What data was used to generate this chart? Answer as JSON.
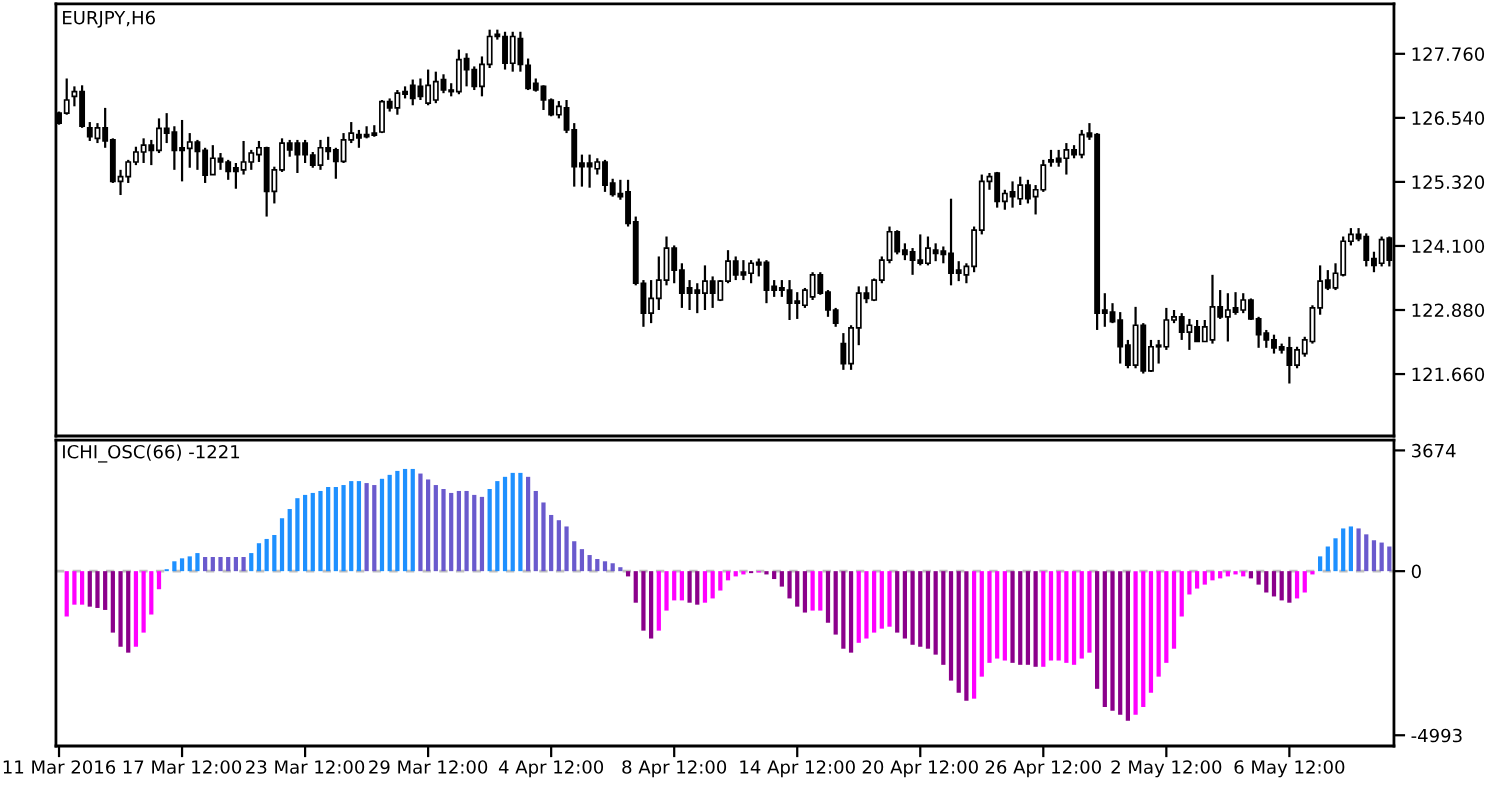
{
  "chart_data": [
    {
      "type": "candlestick",
      "title": "EURJPY,H6",
      "tick_labels": "y",
      "ohlc": [
        [
          126.63,
          126.66,
          126.41,
          126.44
        ],
        [
          126.63,
          127.29,
          126.6,
          126.88
        ],
        [
          126.95,
          127.14,
          126.76,
          127.04
        ],
        [
          127.04,
          127.16,
          126.35,
          126.38
        ],
        [
          126.35,
          126.46,
          126.1,
          126.18
        ],
        [
          126.15,
          126.44,
          126.06,
          126.35
        ],
        [
          126.35,
          126.73,
          125.97,
          126.1
        ],
        [
          126.12,
          126.15,
          125.3,
          125.33
        ],
        [
          125.33,
          125.55,
          125.07,
          125.42
        ],
        [
          125.42,
          125.74,
          125.3,
          125.7
        ],
        [
          125.7,
          125.99,
          125.64,
          125.89
        ],
        [
          125.89,
          126.15,
          125.68,
          126.02
        ],
        [
          126.02,
          126.12,
          125.64,
          125.92
        ],
        [
          125.92,
          126.53,
          125.87,
          126.34
        ],
        [
          126.34,
          126.63,
          126.06,
          126.25
        ],
        [
          126.27,
          126.38,
          125.55,
          125.92
        ],
        [
          125.97,
          126.5,
          125.33,
          125.92
        ],
        [
          125.96,
          126.25,
          125.59,
          126.08
        ],
        [
          126.08,
          126.12,
          125.55,
          125.9
        ],
        [
          125.92,
          125.97,
          125.3,
          125.45
        ],
        [
          125.46,
          126.02,
          125.46,
          125.77
        ],
        [
          125.77,
          125.87,
          125.55,
          125.7
        ],
        [
          125.7,
          125.74,
          125.36,
          125.52
        ],
        [
          125.59,
          125.68,
          125.19,
          125.52
        ],
        [
          125.55,
          126.1,
          125.46,
          125.7
        ],
        [
          125.7,
          125.93,
          125.55,
          125.87
        ],
        [
          125.84,
          126.1,
          125.7,
          125.97
        ],
        [
          125.97,
          125.99,
          124.66,
          125.14
        ],
        [
          125.14,
          125.61,
          124.91,
          125.55
        ],
        [
          125.55,
          126.15,
          125.51,
          126.06
        ],
        [
          126.06,
          126.12,
          125.8,
          125.93
        ],
        [
          126.06,
          126.12,
          125.49,
          125.84
        ],
        [
          126.06,
          126.12,
          125.68,
          125.84
        ],
        [
          125.83,
          125.89,
          125.59,
          125.64
        ],
        [
          125.64,
          126.12,
          125.55,
          125.97
        ],
        [
          125.97,
          126.18,
          125.74,
          125.9
        ],
        [
          125.93,
          125.97,
          125.38,
          125.71
        ],
        [
          125.71,
          126.25,
          125.68,
          126.12
        ],
        [
          126.12,
          126.46,
          126.06,
          126.25
        ],
        [
          126.22,
          126.31,
          125.97,
          126.16
        ],
        [
          126.22,
          126.38,
          126.15,
          126.18
        ],
        [
          126.25,
          126.4,
          126.18,
          126.21
        ],
        [
          126.27,
          126.88,
          126.25,
          126.85
        ],
        [
          126.85,
          126.91,
          126.66,
          126.73
        ],
        [
          126.73,
          127.07,
          126.6,
          127.01
        ],
        [
          127.04,
          127.14,
          126.91,
          126.99
        ],
        [
          127.16,
          127.27,
          126.78,
          126.91
        ],
        [
          127.14,
          127.29,
          126.88,
          126.95
        ],
        [
          126.82,
          127.46,
          126.78,
          127.16
        ],
        [
          126.88,
          127.42,
          126.82,
          127.23
        ],
        [
          127.27,
          127.37,
          127.01,
          127.07
        ],
        [
          127.07,
          127.2,
          126.95,
          127.04
        ],
        [
          127.04,
          127.84,
          126.99,
          127.65
        ],
        [
          127.67,
          127.77,
          127.14,
          127.46
        ],
        [
          127.46,
          127.52,
          127.07,
          127.14
        ],
        [
          127.14,
          127.71,
          126.95,
          127.56
        ],
        [
          127.56,
          128.22,
          127.49,
          128.09
        ],
        [
          128.13,
          128.22,
          128.03,
          128.09
        ],
        [
          128.09,
          128.18,
          127.46,
          127.58
        ],
        [
          127.58,
          128.18,
          127.42,
          128.09
        ],
        [
          128.05,
          128.18,
          127.42,
          127.56
        ],
        [
          127.54,
          127.67,
          127.07,
          127.1
        ],
        [
          127.2,
          127.29,
          127.04,
          127.07
        ],
        [
          127.14,
          127.16,
          126.69,
          126.88
        ],
        [
          126.88,
          126.91,
          126.57,
          126.6
        ],
        [
          126.6,
          126.86,
          126.53,
          126.76
        ],
        [
          126.73,
          126.88,
          126.25,
          126.31
        ],
        [
          126.31,
          126.44,
          125.23,
          125.61
        ],
        [
          125.68,
          125.84,
          125.23,
          125.61
        ],
        [
          125.68,
          125.84,
          125.21,
          125.61
        ],
        [
          125.57,
          125.77,
          125.46,
          125.7
        ],
        [
          125.7,
          125.74,
          125.13,
          125.26
        ],
        [
          125.3,
          125.38,
          125.04,
          125.08
        ],
        [
          125.1,
          125.36,
          124.98,
          125.04
        ],
        [
          125.13,
          125.36,
          124.47,
          124.53
        ],
        [
          124.56,
          124.66,
          123.35,
          123.39
        ],
        [
          123.39,
          123.45,
          122.56,
          122.82
        ],
        [
          122.82,
          123.45,
          122.63,
          123.1
        ],
        [
          123.1,
          123.9,
          122.88,
          123.45
        ],
        [
          123.45,
          124.28,
          123.35,
          124.06
        ],
        [
          124.06,
          124.11,
          123.39,
          123.64
        ],
        [
          123.64,
          123.77,
          122.92,
          123.2
        ],
        [
          123.3,
          123.45,
          122.88,
          123.2
        ],
        [
          123.26,
          123.39,
          122.82,
          123.2
        ],
        [
          123.2,
          123.73,
          122.88,
          123.43
        ],
        [
          123.43,
          123.52,
          122.92,
          123.2
        ],
        [
          123.07,
          123.45,
          123.05,
          123.43
        ],
        [
          123.43,
          124.02,
          123.39,
          123.81
        ],
        [
          123.81,
          123.9,
          123.45,
          123.55
        ],
        [
          123.6,
          123.83,
          123.45,
          123.55
        ],
        [
          123.58,
          123.83,
          123.39,
          123.77
        ],
        [
          123.79,
          123.86,
          123.52,
          123.74
        ],
        [
          123.79,
          123.83,
          123.01,
          123.26
        ],
        [
          123.33,
          123.45,
          123.13,
          123.26
        ],
        [
          123.3,
          123.45,
          123.13,
          123.26
        ],
        [
          123.26,
          123.45,
          122.69,
          123.01
        ],
        [
          123.05,
          123.22,
          122.71,
          123.01
        ],
        [
          122.97,
          123.3,
          122.92,
          123.26
        ],
        [
          123.13,
          123.6,
          123.07,
          123.55
        ],
        [
          123.55,
          123.6,
          123.17,
          123.2
        ],
        [
          123.22,
          123.26,
          122.75,
          122.88
        ],
        [
          122.88,
          122.92,
          122.56,
          122.63
        ],
        [
          122.24,
          122.44,
          121.74,
          121.86
        ],
        [
          121.86,
          122.59,
          121.74,
          122.54
        ],
        [
          122.54,
          123.33,
          122.21,
          123.2
        ],
        [
          123.2,
          123.33,
          123.01,
          123.1
        ],
        [
          123.07,
          123.48,
          123.05,
          123.45
        ],
        [
          123.45,
          123.9,
          123.39,
          123.83
        ],
        [
          123.83,
          124.47,
          123.77,
          124.37
        ],
        [
          124.37,
          124.4,
          123.94,
          123.99
        ],
        [
          124.02,
          124.15,
          123.83,
          123.94
        ],
        [
          123.99,
          124.06,
          123.55,
          123.83
        ],
        [
          123.83,
          124.32,
          123.73,
          123.77
        ],
        [
          123.77,
          124.28,
          123.73,
          124.06
        ],
        [
          124.02,
          124.15,
          123.81,
          123.96
        ],
        [
          124.0,
          124.09,
          123.77,
          123.94
        ],
        [
          123.96,
          125.0,
          123.35,
          123.58
        ],
        [
          123.64,
          123.81,
          123.43,
          123.58
        ],
        [
          123.55,
          123.77,
          123.39,
          123.71
        ],
        [
          123.71,
          124.47,
          123.6,
          124.4
        ],
        [
          124.4,
          125.46,
          124.32,
          125.33
        ],
        [
          125.33,
          125.49,
          125.17,
          125.42
        ],
        [
          125.49,
          125.51,
          124.83,
          124.95
        ],
        [
          124.95,
          125.17,
          124.79,
          125.1
        ],
        [
          125.13,
          125.33,
          124.83,
          125.04
        ],
        [
          125.0,
          125.42,
          124.88,
          125.26
        ],
        [
          125.26,
          125.36,
          124.91,
          125.0
        ],
        [
          125.04,
          125.26,
          124.7,
          125.17
        ],
        [
          125.17,
          125.74,
          125.13,
          125.64
        ],
        [
          125.74,
          125.93,
          125.61,
          125.7
        ],
        [
          125.77,
          125.93,
          125.61,
          125.7
        ],
        [
          125.77,
          126.06,
          125.46,
          125.93
        ],
        [
          125.93,
          126.02,
          125.77,
          125.84
        ],
        [
          125.84,
          126.31,
          125.77,
          126.22
        ],
        [
          126.25,
          126.44,
          126.12,
          126.18
        ],
        [
          126.22,
          126.25,
          122.5,
          122.82
        ],
        [
          122.88,
          123.2,
          122.56,
          122.82
        ],
        [
          122.84,
          123.01,
          122.63,
          122.66
        ],
        [
          122.69,
          122.84,
          121.86,
          122.18
        ],
        [
          122.21,
          122.31,
          121.77,
          121.83
        ],
        [
          121.83,
          122.94,
          121.77,
          122.59
        ],
        [
          122.59,
          122.63,
          121.67,
          121.72
        ],
        [
          121.72,
          122.31,
          121.7,
          122.18
        ],
        [
          122.18,
          122.31,
          121.86,
          122.21
        ],
        [
          122.18,
          122.92,
          122.12,
          122.69
        ],
        [
          122.69,
          122.88,
          122.63,
          122.75
        ],
        [
          122.75,
          122.82,
          122.31,
          122.46
        ],
        [
          122.46,
          122.71,
          122.12,
          122.59
        ],
        [
          122.56,
          122.69,
          122.28,
          122.28
        ],
        [
          122.28,
          122.69,
          122.28,
          122.56
        ],
        [
          122.31,
          123.55,
          122.24,
          122.94
        ],
        [
          122.94,
          123.26,
          122.71,
          122.75
        ],
        [
          122.75,
          123.2,
          122.28,
          122.88
        ],
        [
          122.92,
          123.22,
          122.79,
          122.84
        ],
        [
          122.88,
          123.2,
          122.82,
          123.07
        ],
        [
          123.07,
          123.1,
          122.69,
          122.71
        ],
        [
          122.71,
          122.75,
          122.16,
          122.41
        ],
        [
          122.44,
          122.5,
          122.16,
          122.31
        ],
        [
          122.31,
          122.41,
          122.05,
          122.16
        ],
        [
          122.18,
          122.24,
          122.05,
          122.12
        ],
        [
          122.16,
          122.37,
          121.48,
          121.83
        ],
        [
          121.83,
          122.18,
          121.77,
          122.12
        ],
        [
          122.05,
          122.37,
          121.99,
          122.31
        ],
        [
          122.28,
          122.97,
          122.24,
          122.92
        ],
        [
          122.92,
          123.73,
          122.79,
          123.43
        ],
        [
          123.45,
          123.64,
          123.26,
          123.3
        ],
        [
          123.3,
          123.77,
          123.26,
          123.58
        ],
        [
          123.55,
          124.28,
          123.52,
          124.19
        ],
        [
          124.19,
          124.44,
          124.11,
          124.32
        ],
        [
          124.32,
          124.44,
          124.19,
          124.24
        ],
        [
          124.28,
          124.34,
          123.71,
          123.83
        ],
        [
          123.86,
          123.99,
          123.6,
          123.73
        ],
        [
          123.77,
          124.28,
          123.71,
          124.22
        ],
        [
          124.25,
          124.28,
          123.71,
          123.83
        ]
      ],
      "ylim": [
        120.48,
        128.71
      ],
      "yticks": [
        {
          "value": 127.76,
          "label": "127.760"
        },
        {
          "value": 126.54,
          "label": "126.540"
        },
        {
          "value": 125.32,
          "label": "125.320"
        },
        {
          "value": 124.1,
          "label": "124.100"
        },
        {
          "value": 122.88,
          "label": "122.880"
        },
        {
          "value": 121.66,
          "label": "121.660"
        }
      ]
    },
    {
      "type": "bar",
      "title": "ICHI_OSC(66) -1221",
      "categories": [
        "11 Mar 2016",
        null,
        null,
        null,
        null,
        null,
        null,
        null,
        null,
        null,
        null,
        null,
        null,
        null,
        null,
        null,
        "17 Mar 12:00",
        null,
        null,
        null,
        null,
        null,
        null,
        null,
        null,
        null,
        null,
        null,
        null,
        null,
        null,
        null,
        "23 Mar 12:00",
        null,
        null,
        null,
        null,
        null,
        null,
        null,
        null,
        null,
        null,
        null,
        null,
        null,
        null,
        null,
        "29 Mar 12:00",
        null,
        null,
        null,
        null,
        null,
        null,
        null,
        null,
        null,
        null,
        null,
        null,
        null,
        null,
        null,
        "4 Apr 12:00",
        null,
        null,
        null,
        null,
        null,
        null,
        null,
        null,
        null,
        null,
        null,
        null,
        null,
        null,
        null,
        "8 Apr 12:00",
        null,
        null,
        null,
        null,
        null,
        null,
        null,
        null,
        null,
        null,
        null,
        null,
        null,
        null,
        null,
        "14 Apr 12:00",
        null,
        null,
        null,
        null,
        null,
        null,
        null,
        null,
        null,
        null,
        null,
        null,
        null,
        null,
        null,
        "20 Apr 12:00",
        null,
        null,
        null,
        null,
        null,
        null,
        null,
        null,
        null,
        null,
        null,
        null,
        null,
        null,
        null,
        "26 Apr 12:00",
        null,
        null,
        null,
        null,
        null,
        null,
        null,
        null,
        null,
        null,
        null,
        null,
        null,
        null,
        null,
        "2 May 12:00",
        null,
        null,
        null,
        null,
        null,
        null,
        null,
        null,
        null,
        null,
        null,
        null,
        null,
        null,
        null,
        "6 May 12:00",
        null,
        null,
        null,
        null,
        null,
        null,
        null,
        null,
        null,
        null,
        null,
        null,
        null
      ],
      "values": [
        null,
        -1380,
        -1020,
        -1020,
        -1080,
        -1120,
        -1180,
        -1870,
        -2300,
        -2480,
        -2300,
        -1870,
        -1320,
        -550,
        60,
        300,
        390,
        450,
        550,
        430,
        430,
        430,
        430,
        430,
        430,
        550,
        850,
        980,
        1100,
        1610,
        1890,
        2220,
        2320,
        2380,
        2440,
        2560,
        2560,
        2620,
        2740,
        2740,
        2680,
        2620,
        2810,
        2930,
        3050,
        3110,
        3110,
        2970,
        2790,
        2620,
        2500,
        2380,
        2440,
        2440,
        2320,
        2260,
        2500,
        2740,
        2870,
        2990,
        2990,
        2870,
        2440,
        2090,
        1710,
        1550,
        1360,
        910,
        670,
        490,
        370,
        300,
        240,
        120,
        -160,
        -960,
        -1810,
        -2050,
        -1810,
        -1200,
        -890,
        -890,
        -960,
        -1020,
        -960,
        -830,
        -590,
        -280,
        -160,
        -100,
        -60,
        -40,
        -100,
        -240,
        -470,
        -830,
        -1080,
        -1260,
        -1200,
        -1200,
        -1570,
        -1930,
        -2360,
        -2480,
        -2180,
        -2050,
        -1870,
        -1750,
        -1690,
        -1870,
        -2050,
        -2240,
        -2300,
        -2360,
        -2540,
        -2850,
        -3330,
        -3700,
        -3940,
        -3880,
        -3210,
        -2790,
        -2660,
        -2720,
        -2790,
        -2850,
        -2850,
        -2910,
        -2910,
        -2720,
        -2720,
        -2790,
        -2850,
        -2660,
        -2480,
        -3580,
        -4130,
        -4250,
        -4370,
        -4550,
        -4370,
        -4130,
        -3700,
        -3210,
        -2790,
        -2360,
        -1380,
        -710,
        -530,
        -410,
        -280,
        -220,
        -160,
        -100,
        -160,
        -220,
        -410,
        -650,
        -770,
        -890,
        -960,
        -830,
        -650,
        -100,
        450,
        750,
        1000,
        1300,
        1360,
        1300,
        1120,
        940,
        870,
        750
      ],
      "colors": [
        "#ff00ff",
        "#ff00ff",
        "#ff00ff",
        "#ff00ff",
        "#8b008b",
        "#8b008b",
        "#8b008b",
        "#8b008b",
        "#8b008b",
        "#8b008b",
        "#ff00ff",
        "#ff00ff",
        "#ff00ff",
        "#ff00ff",
        "#1e90ff",
        "#1e90ff",
        "#1e90ff",
        "#1e90ff",
        "#1e90ff",
        "#6a5acd",
        "#6a5acd",
        "#6a5acd",
        "#6a5acd",
        "#6a5acd",
        "#6a5acd",
        "#1e90ff",
        "#1e90ff",
        "#1e90ff",
        "#1e90ff",
        "#1e90ff",
        "#1e90ff",
        "#1e90ff",
        "#1e90ff",
        "#1e90ff",
        "#1e90ff",
        "#1e90ff",
        "#1e90ff",
        "#1e90ff",
        "#1e90ff",
        "#1e90ff",
        "#6a5acd",
        "#6a5acd",
        "#1e90ff",
        "#1e90ff",
        "#1e90ff",
        "#1e90ff",
        "#1e90ff",
        "#6a5acd",
        "#6a5acd",
        "#6a5acd",
        "#6a5acd",
        "#6a5acd",
        "#6a5acd",
        "#6a5acd",
        "#6a5acd",
        "#6a5acd",
        "#1e90ff",
        "#1e90ff",
        "#1e90ff",
        "#1e90ff",
        "#1e90ff",
        "#6a5acd",
        "#6a5acd",
        "#6a5acd",
        "#6a5acd",
        "#6a5acd",
        "#6a5acd",
        "#6a5acd",
        "#6a5acd",
        "#6a5acd",
        "#6a5acd",
        "#6a5acd",
        "#6a5acd",
        "#6a5acd",
        "#8b008b",
        "#8b008b",
        "#8b008b",
        "#8b008b",
        "#ff00ff",
        "#ff00ff",
        "#ff00ff",
        "#ff00ff",
        "#8b008b",
        "#8b008b",
        "#ff00ff",
        "#ff00ff",
        "#ff00ff",
        "#ff00ff",
        "#ff00ff",
        "#ff00ff",
        "#8b008b",
        "#ff00ff",
        "#8b008b",
        "#8b008b",
        "#8b008b",
        "#8b008b",
        "#8b008b",
        "#8b008b",
        "#ff00ff",
        "#ff00ff",
        "#8b008b",
        "#8b008b",
        "#8b008b",
        "#8b008b",
        "#ff00ff",
        "#ff00ff",
        "#ff00ff",
        "#ff00ff",
        "#ff00ff",
        "#8b008b",
        "#8b008b",
        "#8b008b",
        "#8b008b",
        "#8b008b",
        "#8b008b",
        "#8b008b",
        "#8b008b",
        "#8b008b",
        "#8b008b",
        "#ff00ff",
        "#ff00ff",
        "#ff00ff",
        "#ff00ff",
        "#ff00ff",
        "#8b008b",
        "#8b008b",
        "#8b008b",
        "#8b008b",
        "#ff00ff",
        "#ff00ff",
        "#ff00ff",
        "#ff00ff",
        "#ff00ff",
        "#ff00ff",
        "#ff00ff",
        "#8b008b",
        "#8b008b",
        "#8b008b",
        "#8b008b",
        "#8b008b",
        "#ff00ff",
        "#ff00ff",
        "#ff00ff",
        "#ff00ff",
        "#ff00ff",
        "#ff00ff",
        "#ff00ff",
        "#ff00ff",
        "#ff00ff",
        "#ff00ff",
        "#ff00ff",
        "#ff00ff",
        "#ff00ff",
        "#ff00ff",
        "#ff00ff",
        "#8b008b",
        "#8b008b",
        "#8b008b",
        "#8b008b",
        "#8b008b",
        "#8b008b",
        "#ff00ff",
        "#ff00ff",
        "#ff00ff",
        "#1e90ff",
        "#1e90ff",
        "#1e90ff",
        "#1e90ff",
        "#1e90ff",
        "#6a5acd",
        "#6a5acd",
        "#6a5acd",
        "#6a5acd",
        "#6a5acd"
      ],
      "ylim": [
        -5320,
        3990
      ],
      "yticks": [
        3674,
        0,
        -4993
      ],
      "ref_lines": [
        {
          "axis": "y",
          "value": 0,
          "color": "#c0c0c0",
          "line_style": "dashed"
        }
      ]
    }
  ]
}
